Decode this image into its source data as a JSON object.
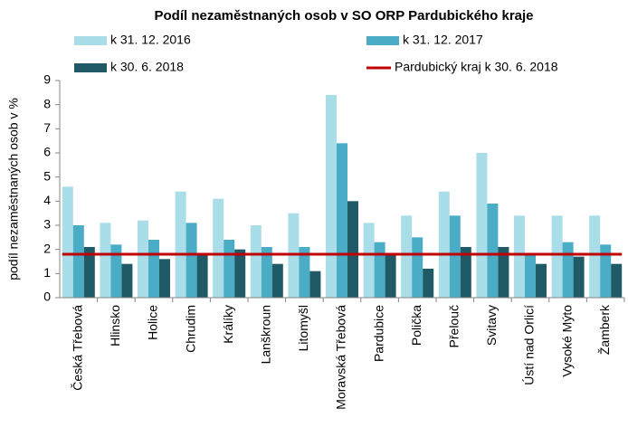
{
  "chart_data": {
    "type": "bar",
    "title": "Podíl nezaměstnaných osob v SO ORP Pardubického kraje",
    "y_label": "podíl nezaměstnaných osob v %",
    "categories": [
      "Česká Třebová",
      "Hlinsko",
      "Holice",
      "Chrudim",
      "Králíky",
      "Lanškroun",
      "Litomyšl",
      "Moravská Třebová",
      "Pardubice",
      "Polička",
      "Přelouč",
      "Svitavy",
      "Ústí nad Orlicí",
      "Vysoké Mýto",
      "Žamberk"
    ],
    "series": [
      {
        "name": "k 31. 12. 2016",
        "color": "#a9dde7",
        "values": [
          4.6,
          3.1,
          3.2,
          4.4,
          4.1,
          3.0,
          3.5,
          8.4,
          3.1,
          3.4,
          4.4,
          6.0,
          3.4,
          3.4,
          3.4
        ]
      },
      {
        "name": "k 31. 12. 2017",
        "color": "#4bacc6",
        "values": [
          3.0,
          2.2,
          2.4,
          3.1,
          2.4,
          2.1,
          2.1,
          6.4,
          2.3,
          2.5,
          3.4,
          3.9,
          1.8,
          2.3,
          2.2
        ]
      },
      {
        "name": "k 30. 6. 2018",
        "color": "#215a67",
        "values": [
          2.1,
          1.4,
          1.6,
          1.8,
          2.0,
          1.4,
          1.1,
          4.0,
          1.8,
          1.2,
          2.1,
          2.1,
          1.4,
          1.7,
          1.4
        ]
      }
    ],
    "reference_line": {
      "name": "Pardubický kraj k 30. 6. 2018",
      "color": "#c00000",
      "value": 1.8
    },
    "ylim": [
      0,
      9
    ],
    "yticks": [
      0,
      1,
      2,
      3,
      4,
      5,
      6,
      7,
      8,
      9
    ]
  }
}
